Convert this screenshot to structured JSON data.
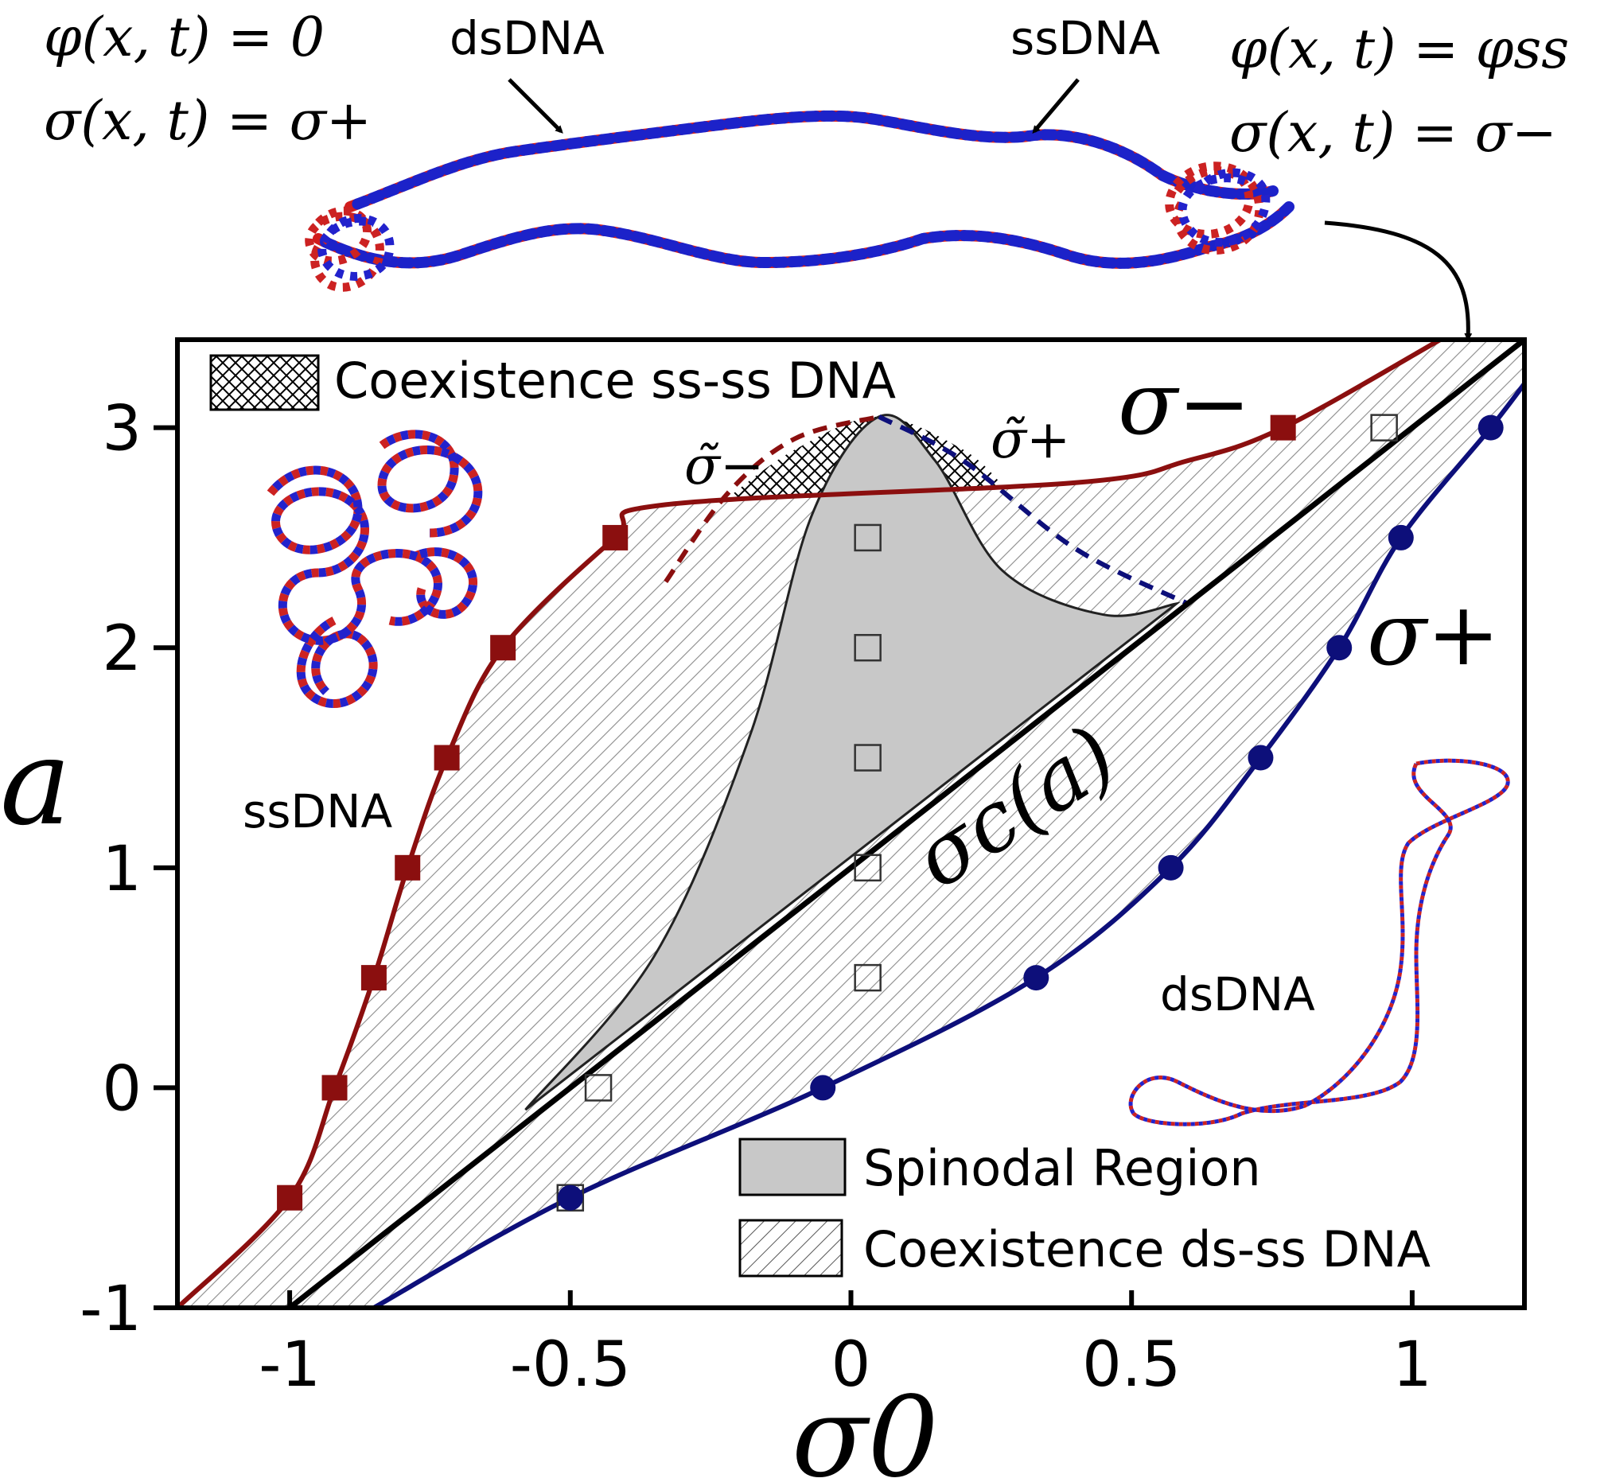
{
  "chart_data": {
    "type": "line",
    "xlabel": "σ0",
    "ylabel": "a",
    "xlim": [
      -1.2,
      1.2
    ],
    "ylim": [
      -1,
      3.4
    ],
    "xticks": [
      "-1",
      "-0.5",
      "0",
      "0.5",
      "1"
    ],
    "xtick_values": [
      -1,
      -0.5,
      0,
      0.5,
      1
    ],
    "yticks": [
      "-1",
      "0",
      "1",
      "2",
      "3"
    ],
    "ytick_values": [
      -1,
      0,
      1,
      2,
      3
    ],
    "colors": {
      "sigma_minus": "#8b0f0f",
      "sigma_plus": "#0d0f7a",
      "critical": "#000000",
      "spinodal_fill": "#c8c8c8"
    },
    "series": [
      {
        "name": "σ−",
        "markers": "square",
        "x": [
          -1.0,
          -0.92,
          -0.85,
          -0.79,
          -0.72,
          -0.62,
          -0.42,
          0.77
        ],
        "y": [
          -0.5,
          0.0,
          0.5,
          1.0,
          1.5,
          2.0,
          2.5,
          3.0
        ]
      },
      {
        "name": "σ+",
        "markers": "circle",
        "x": [
          -0.5,
          -0.05,
          0.33,
          0.57,
          0.73,
          0.87,
          0.98,
          1.14
        ],
        "y": [
          -0.5,
          0.0,
          0.5,
          1.0,
          1.5,
          2.0,
          2.5,
          3.0
        ]
      },
      {
        "name": "σc(a)",
        "x": [
          -1.0,
          1.2
        ],
        "y": [
          -1.0,
          3.4
        ]
      }
    ],
    "open_squares": {
      "x": [
        -0.5,
        -0.45,
        0.03,
        0.03,
        0.03,
        0.03,
        0.03,
        0.95
      ],
      "y": [
        -0.5,
        0.0,
        0.5,
        1.0,
        1.5,
        2.0,
        2.5,
        3.0
      ]
    },
    "annotations": {
      "sigma_minus_label": "σ−",
      "sigma_plus_label": "σ+",
      "sigma_tilde_minus": "σ̃−",
      "sigma_tilde_plus": "σ̃+",
      "sigma_c": "σc(a)"
    },
    "legend": {
      "top_left": "Coexistence ss-ss DNA",
      "spinodal": "Spinodal Region",
      "ds_ss": "Coexistence ds-ss DNA"
    },
    "region_labels": {
      "ssdna": "ssDNA",
      "dsdna": "dsDNA"
    }
  },
  "top_labels": {
    "left_eq1": "φ(x, t) = 0",
    "left_eq2": "σ(x, t) = σ+",
    "right_eq1": "φ(x, t) = φss",
    "right_eq2": "σ(x, t) = σ−",
    "dsdna": "dsDNA",
    "ssdna": "ssDNA"
  }
}
